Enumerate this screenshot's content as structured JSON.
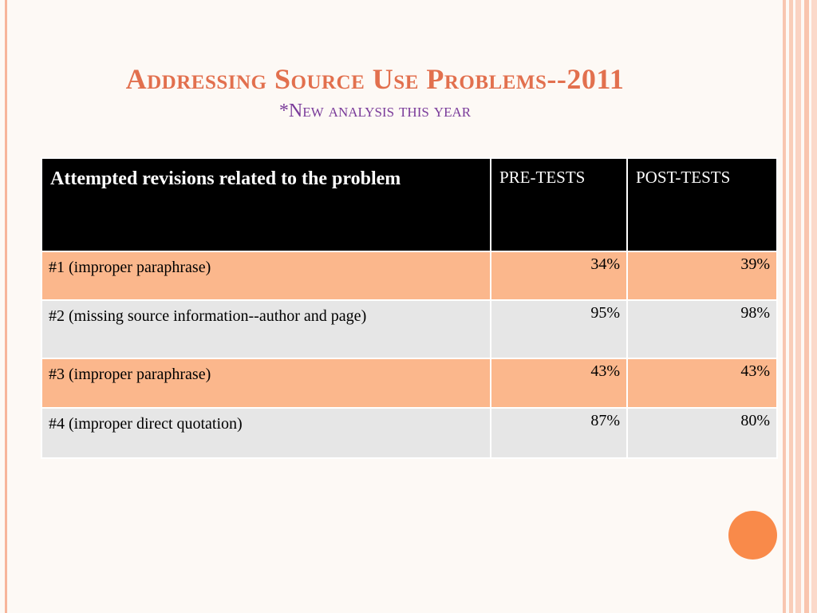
{
  "slide": {
    "title": "Addressing Source Use Problems--2011",
    "subtitle": "*New analysis this year"
  },
  "table": {
    "headers": {
      "main": "Attempted revisions related to the problem",
      "pre": "PRE-TESTS",
      "post": "POST-TESTS"
    },
    "rows": [
      {
        "label": "#1 (improper paraphrase)",
        "pre": "34%",
        "post": "39%"
      },
      {
        "label": "#2 (missing source information--author and page)",
        "pre": "95%",
        "post": "98%"
      },
      {
        "label": "#3 (improper paraphrase)",
        "pre": "43%",
        "post": "43%"
      },
      {
        "label": "#4 (improper direct quotation)",
        "pre": "87%",
        "post": "80%"
      }
    ]
  },
  "colors": {
    "title": "#e2704e",
    "subtitle": "#7a3b9a",
    "header_bg": "#000000",
    "row_odd": "#fbb78c",
    "row_even": "#e6e6e6",
    "accent_circle": "#f98a4a"
  }
}
